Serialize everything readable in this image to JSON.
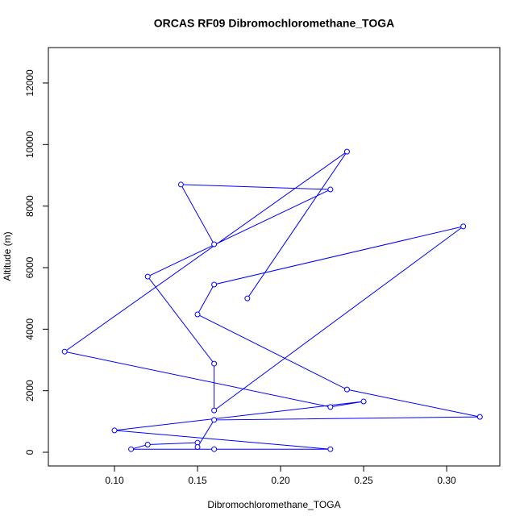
{
  "chart_data": {
    "type": "scatter",
    "line": true,
    "title": "ORCAS RF09 Dibromochloromethane_TOGA",
    "x_label": "Dibromochloromethane_TOGA",
    "y_label": "Altitude (m)",
    "color": "#0000ff",
    "x": [
      0.18,
      0.24,
      0.07,
      0.23,
      0.25,
      0.1,
      0.23,
      0.16,
      0.11,
      0.12,
      0.15,
      0.15,
      0.16,
      0.32,
      0.24,
      0.15,
      0.16,
      0.31,
      0.16,
      0.16,
      0.12,
      0.23,
      0.14,
      0.16
    ],
    "values": [
      5000,
      9770,
      3270,
      1470,
      1650,
      710,
      100,
      100,
      100,
      250,
      310,
      170,
      1050,
      1150,
      2040,
      4480,
      5450,
      7340,
      1360,
      2880,
      5710,
      8540,
      8700,
      6760
    ],
    "xlim": [
      0.0602,
      0.332
    ],
    "ylim": [
      -445,
      13152
    ],
    "xticks": [
      {
        "value": 0.1,
        "label": "0.10"
      },
      {
        "value": 0.15,
        "label": "0.15"
      },
      {
        "value": 0.2,
        "label": "0.20"
      },
      {
        "value": 0.25,
        "label": "0.25"
      },
      {
        "value": 0.3,
        "label": "0.30"
      }
    ],
    "yticks": [
      0,
      2000,
      4000,
      6000,
      8000,
      10000,
      12000
    ]
  }
}
